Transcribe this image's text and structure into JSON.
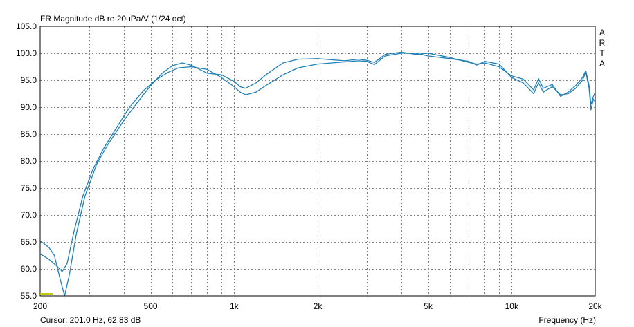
{
  "app": {
    "brand_letters": [
      "A",
      "R",
      "T",
      "A"
    ]
  },
  "cursor_readout": "Cursor: 201.0 Hz, 62.83 dB",
  "chart_data": {
    "type": "line",
    "title": "FR Magnitude dB re 20uPa/V (1/24 oct)",
    "xlabel": "Frequency (Hz)",
    "ylabel": "",
    "xscale": "log",
    "xlim": [
      200,
      20000
    ],
    "ylim": [
      55,
      105
    ],
    "grid": true,
    "x_tick_labels": [
      {
        "value": 200,
        "label": "200"
      },
      {
        "value": 500,
        "label": "500"
      },
      {
        "value": 1000,
        "label": "1k"
      },
      {
        "value": 2000,
        "label": "2k"
      },
      {
        "value": 5000,
        "label": "5k"
      },
      {
        "value": 10000,
        "label": "10k"
      },
      {
        "value": 20000,
        "label": "20k"
      }
    ],
    "y_tick_labels": [
      "55.0",
      "60.0",
      "65.0",
      "70.0",
      "75.0",
      "80.0",
      "85.0",
      "90.0",
      "95.0",
      "100.0",
      "105.0"
    ],
    "colors": {
      "series": "#1f7fb5",
      "cursor_marker": "#c8c800",
      "grid": "#808080"
    },
    "series": [
      {
        "points": [
          [
            200,
            62.8
          ],
          [
            215,
            61.8
          ],
          [
            230,
            60.5
          ],
          [
            240,
            59.5
          ],
          [
            250,
            61.0
          ],
          [
            265,
            67.0
          ],
          [
            285,
            73.5
          ],
          [
            310,
            78.5
          ],
          [
            340,
            82.5
          ],
          [
            380,
            86.5
          ],
          [
            420,
            90.0
          ],
          [
            470,
            93.0
          ],
          [
            520,
            95.0
          ],
          [
            580,
            96.5
          ],
          [
            630,
            97.3
          ],
          [
            700,
            97.5
          ],
          [
            800,
            97.0
          ],
          [
            900,
            95.5
          ],
          [
            1000,
            93.8
          ],
          [
            1050,
            92.8
          ],
          [
            1100,
            92.3
          ],
          [
            1200,
            92.8
          ],
          [
            1300,
            94.0
          ],
          [
            1500,
            96.0
          ],
          [
            1700,
            97.3
          ],
          [
            2000,
            98.0
          ],
          [
            2500,
            98.4
          ],
          [
            2800,
            98.6
          ],
          [
            3000,
            98.5
          ],
          [
            3200,
            97.9
          ],
          [
            3500,
            99.5
          ],
          [
            4000,
            100.0
          ],
          [
            4500,
            100.0
          ],
          [
            5000,
            99.5
          ],
          [
            6000,
            99.0
          ],
          [
            7000,
            98.5
          ],
          [
            7500,
            97.8
          ],
          [
            8000,
            98.5
          ],
          [
            9000,
            98.0
          ],
          [
            10000,
            95.5
          ],
          [
            11000,
            94.5
          ],
          [
            12000,
            92.5
          ],
          [
            12500,
            94.5
          ],
          [
            13000,
            92.8
          ],
          [
            14000,
            93.8
          ],
          [
            15000,
            92.3
          ],
          [
            16000,
            92.5
          ],
          [
            17000,
            93.5
          ],
          [
            18000,
            95.0
          ],
          [
            18500,
            96.5
          ],
          [
            19000,
            93.5
          ],
          [
            19300,
            89.5
          ],
          [
            19700,
            91.5
          ],
          [
            20000,
            91.0
          ]
        ]
      },
      {
        "points": [
          [
            200,
            65.2
          ],
          [
            215,
            64.0
          ],
          [
            225,
            62.5
          ],
          [
            235,
            58.5
          ],
          [
            245,
            55.0
          ],
          [
            255,
            59.0
          ],
          [
            270,
            66.5
          ],
          [
            290,
            73.5
          ],
          [
            320,
            79.5
          ],
          [
            350,
            83.0
          ],
          [
            400,
            87.5
          ],
          [
            450,
            91.0
          ],
          [
            500,
            94.0
          ],
          [
            550,
            96.3
          ],
          [
            600,
            97.7
          ],
          [
            650,
            98.2
          ],
          [
            700,
            97.8
          ],
          [
            800,
            96.3
          ],
          [
            900,
            96.0
          ],
          [
            1000,
            94.8
          ],
          [
            1050,
            93.8
          ],
          [
            1100,
            93.5
          ],
          [
            1200,
            94.5
          ],
          [
            1300,
            96.0
          ],
          [
            1500,
            98.2
          ],
          [
            1700,
            98.9
          ],
          [
            2000,
            99.0
          ],
          [
            2500,
            98.6
          ],
          [
            2800,
            98.9
          ],
          [
            3000,
            98.7
          ],
          [
            3200,
            98.3
          ],
          [
            3500,
            99.8
          ],
          [
            4000,
            100.2
          ],
          [
            4500,
            99.8
          ],
          [
            5000,
            100.0
          ],
          [
            6000,
            99.2
          ],
          [
            7000,
            98.3
          ],
          [
            7500,
            98.0
          ],
          [
            8000,
            98.2
          ],
          [
            9000,
            97.5
          ],
          [
            10000,
            95.8
          ],
          [
            11000,
            95.2
          ],
          [
            12000,
            93.2
          ],
          [
            12500,
            95.3
          ],
          [
            13000,
            93.5
          ],
          [
            14000,
            94.2
          ],
          [
            15000,
            92.0
          ],
          [
            16000,
            92.8
          ],
          [
            17000,
            94.0
          ],
          [
            18000,
            95.5
          ],
          [
            18500,
            96.8
          ],
          [
            19000,
            94.0
          ],
          [
            19300,
            90.5
          ],
          [
            19700,
            92.0
          ],
          [
            20000,
            92.8
          ]
        ]
      }
    ]
  }
}
